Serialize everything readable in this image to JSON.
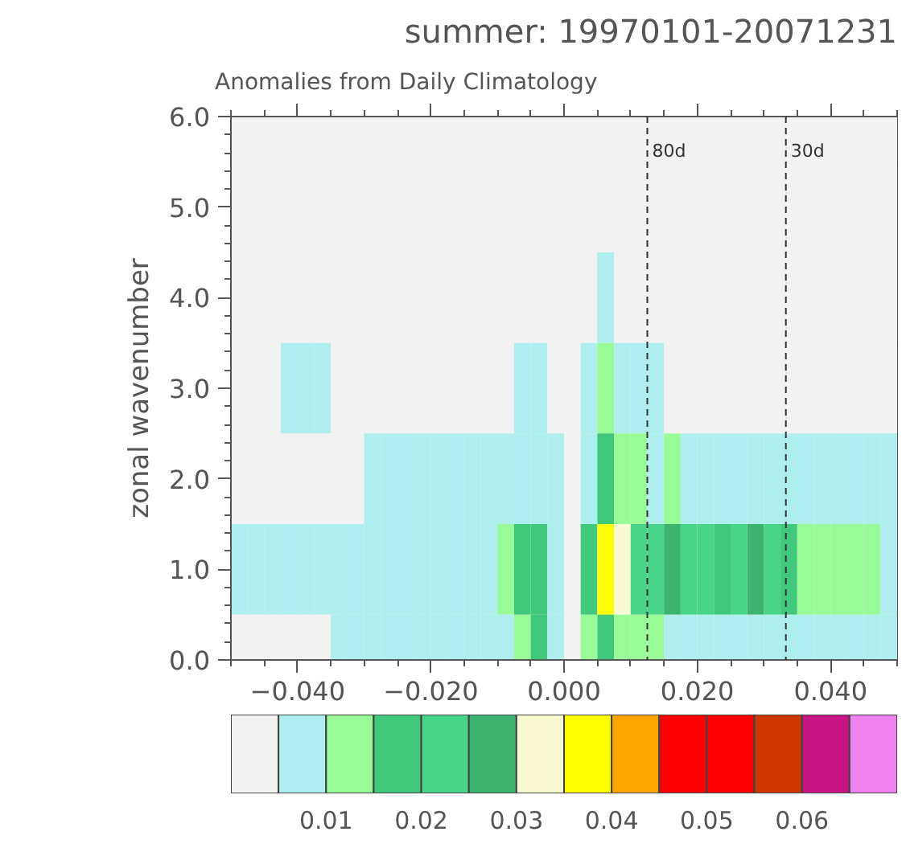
{
  "chart_data": {
    "type": "heatmap",
    "title": "summer: 19970101-20071231",
    "subtitle": "Anomalies from Daily Climatology",
    "ylabel": "zonal wavenumber",
    "x": [
      -0.04875,
      -0.04625,
      -0.04375,
      -0.04125,
      -0.03875,
      -0.03625,
      -0.03375,
      -0.03125,
      -0.02875,
      -0.02625,
      -0.02375,
      -0.02125,
      -0.01875,
      -0.01625,
      -0.01375,
      -0.01125,
      -0.00875,
      -0.00625,
      -0.00375,
      -0.00125,
      0.00125,
      0.00375,
      0.00625,
      0.00875,
      0.01125,
      0.01375,
      0.01625,
      0.01875,
      0.02125,
      0.02375,
      0.02625,
      0.02875,
      0.03125,
      0.03375,
      0.03625,
      0.03875,
      0.04125,
      0.04375,
      0.04625,
      0.04875
    ],
    "cells": [
      [
        0.002,
        0.002,
        0.002,
        0.002,
        0.002,
        0.002,
        0.002,
        0.002,
        0.002,
        0.002,
        0.002,
        0.002,
        0.002,
        0.002,
        0.002,
        0.002,
        0.002,
        0.002,
        0.002,
        0.002,
        0.002,
        0.002,
        0.002,
        0.002,
        0.002,
        0.002,
        0.002,
        0.002,
        0.002,
        0.002,
        0.002,
        0.002,
        0.002,
        0.002,
        0.002,
        0.002,
        0.002,
        0.002,
        0.002,
        0.002
      ],
      [
        0.002,
        0.002,
        0.002,
        0.002,
        0.002,
        0.002,
        0.002,
        0.002,
        0.002,
        0.002,
        0.002,
        0.002,
        0.002,
        0.002,
        0.002,
        0.002,
        0.002,
        0.002,
        0.002,
        0.002,
        0.002,
        0.002,
        0.002,
        0.002,
        0.002,
        0.002,
        0.002,
        0.002,
        0.002,
        0.002,
        0.002,
        0.002,
        0.002,
        0.002,
        0.002,
        0.002,
        0.002,
        0.002,
        0.002,
        0.002
      ],
      [
        0.002,
        0.002,
        0.002,
        0.002,
        0.002,
        0.002,
        0.002,
        0.002,
        0.002,
        0.002,
        0.002,
        0.002,
        0.002,
        0.002,
        0.002,
        0.002,
        0.002,
        0.003,
        0.004,
        0.003,
        0.002,
        0.004,
        0.006,
        0.004,
        0.003,
        0.002,
        0.002,
        0.002,
        0.002,
        0.002,
        0.002,
        0.002,
        0.002,
        0.002,
        0.002,
        0.002,
        0.002,
        0.002,
        0.002,
        0.002
      ],
      [
        0.002,
        0.002,
        0.003,
        0.0055,
        0.007,
        0.006,
        0.003,
        0.003,
        0.003,
        0.003,
        0.003,
        0.003,
        0.003,
        0.003,
        0.003,
        0.003,
        0.004,
        0.006,
        0.007,
        0.004,
        0.002,
        0.007,
        0.014,
        0.008,
        0.006,
        0.0055,
        0.004,
        0.004,
        0.004,
        0.004,
        0.004,
        0.004,
        0.004,
        0.004,
        0.003,
        0.003,
        0.003,
        0.003,
        0.003,
        0.003
      ],
      [
        0.003,
        0.003,
        0.003,
        0.003,
        0.003,
        0.003,
        0.004,
        0.004,
        0.0055,
        0.006,
        0.007,
        0.006,
        0.006,
        0.0055,
        0.006,
        0.007,
        0.008,
        0.008,
        0.008,
        0.006,
        0.003,
        0.009,
        0.017,
        0.013,
        0.011,
        0.009,
        0.0105,
        0.009,
        0.008,
        0.008,
        0.009,
        0.009,
        0.008,
        0.007,
        0.007,
        0.007,
        0.007,
        0.007,
        0.007,
        0.007
      ],
      [
        0.006,
        0.007,
        0.008,
        0.008,
        0.008,
        0.008,
        0.008,
        0.008,
        0.008,
        0.008,
        0.008,
        0.008,
        0.008,
        0.008,
        0.008,
        0.008,
        0.0105,
        0.016,
        0.019,
        0.009,
        0.004,
        0.0155,
        0.038,
        0.033,
        0.021,
        0.024,
        0.026,
        0.024,
        0.021,
        0.019,
        0.023,
        0.028,
        0.022,
        0.016,
        0.013,
        0.012,
        0.012,
        0.011,
        0.01,
        0.009
      ],
      [
        0.003,
        0.003,
        0.003,
        0.003,
        0.004,
        0.004,
        0.006,
        0.007,
        0.007,
        0.007,
        0.007,
        0.007,
        0.007,
        0.007,
        0.007,
        0.007,
        0.009,
        0.012,
        0.016,
        0.007,
        0.003,
        0.012,
        0.016,
        0.013,
        0.011,
        0.0105,
        0.009,
        0.009,
        0.009,
        0.008,
        0.008,
        0.008,
        0.008,
        0.007,
        0.006,
        0.006,
        0.0055,
        0.0055,
        0.006,
        0.006
      ]
    ],
    "colors": [
      "#f2f2f2",
      "#afeeee",
      "#98fb98",
      "#40c97d",
      "#4ad489",
      "#3cb371",
      "#fafad2",
      "#ffff00",
      "#ffa500",
      "#ff0000",
      "#ff0000",
      "#cd3700",
      "#c71585",
      "#ee82ee"
    ],
    "clim": [
      0,
      0.07
    ],
    "cticks": [
      0.01,
      0.02,
      0.03,
      0.04,
      0.05,
      0.06
    ],
    "xlim": [
      -0.05,
      0.05
    ],
    "xticks": [
      {
        "value": -0.04,
        "label": "−0.040"
      },
      {
        "value": -0.02,
        "label": "−0.020"
      },
      {
        "value": 0,
        "label": "0.000"
      },
      {
        "value": 0.02,
        "label": "0.020"
      },
      {
        "value": 0.04,
        "label": "0.040"
      }
    ],
    "ylim": [
      0,
      6
    ],
    "yticks": [
      {
        "value": 0,
        "label": "0.0"
      },
      {
        "value": 1,
        "label": "1.0"
      },
      {
        "value": 2,
        "label": "2.0"
      },
      {
        "value": 3,
        "label": "3.0"
      },
      {
        "value": 4,
        "label": "4.0"
      },
      {
        "value": 5,
        "label": "5.0"
      },
      {
        "value": 6,
        "label": "6.0"
      }
    ],
    "ref_lines": [
      {
        "axis": "x",
        "value": 0.0125,
        "label": "80d",
        "color": "#333333",
        "line_style": "dashed"
      },
      {
        "axis": "x",
        "value": 0.0333,
        "label": "30d",
        "color": "#333333",
        "line_style": "dashed"
      }
    ]
  }
}
